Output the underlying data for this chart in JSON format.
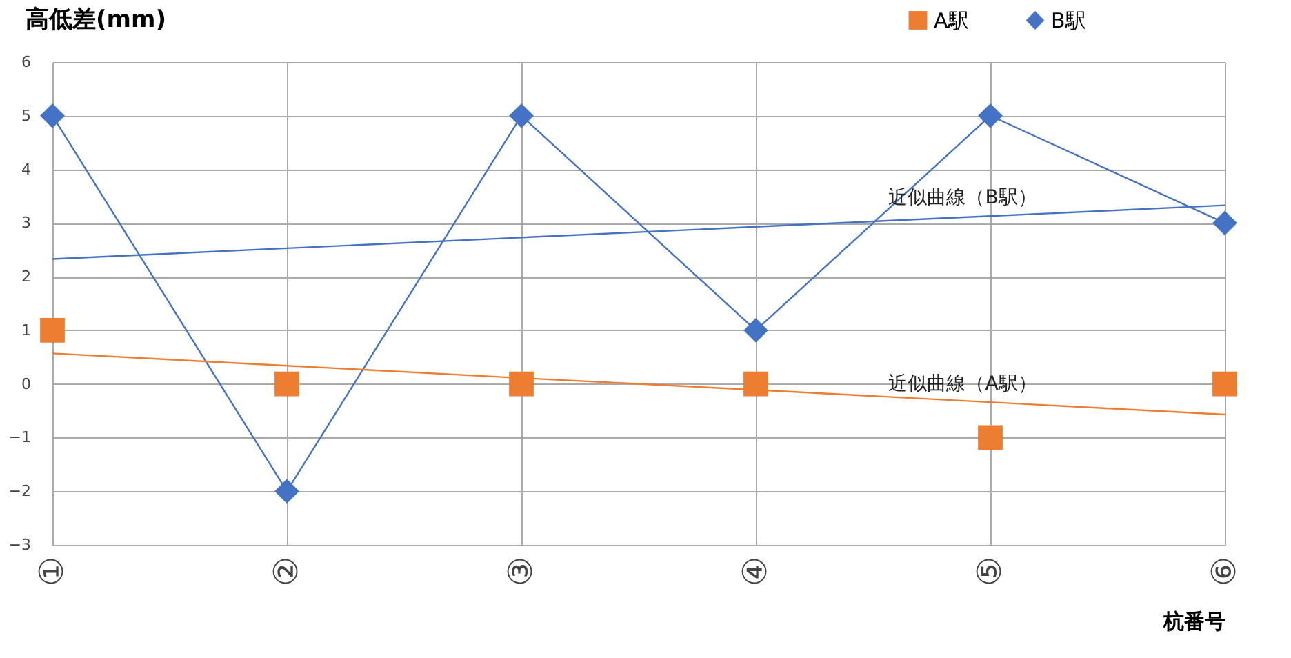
{
  "chart_data": {
    "type": "line",
    "ylabel": "高低差(mm)",
    "xlabel": "杭番号",
    "categories": [
      "①",
      "②",
      "③",
      "④",
      "⑤",
      "⑥"
    ],
    "series": [
      {
        "name": "A駅",
        "type": "scatter",
        "marker": "square",
        "color": "#ed7d31",
        "values": [
          1,
          0,
          0,
          0,
          -1,
          0
        ]
      },
      {
        "name": "B駅",
        "marker": "diamond",
        "color": "#4472c4",
        "values": [
          5,
          -2,
          5,
          1,
          5,
          3
        ]
      },
      {
        "name": "近似曲線（B駅）",
        "marker": "none",
        "color": "#4472c4",
        "values": [
          2.33,
          2.53,
          2.73,
          2.93,
          3.13,
          3.33
        ]
      },
      {
        "name": "近似曲線（A駅）",
        "marker": "none",
        "color": "#ed7d31",
        "values": [
          0.57,
          0.34,
          0.11,
          -0.11,
          -0.34,
          -0.57
        ]
      }
    ],
    "ylim": [
      -3,
      6
    ],
    "yticks": [
      -3,
      -2,
      -1,
      0,
      1,
      2,
      3,
      4,
      5,
      6
    ],
    "grid": true,
    "legend": "top right"
  }
}
